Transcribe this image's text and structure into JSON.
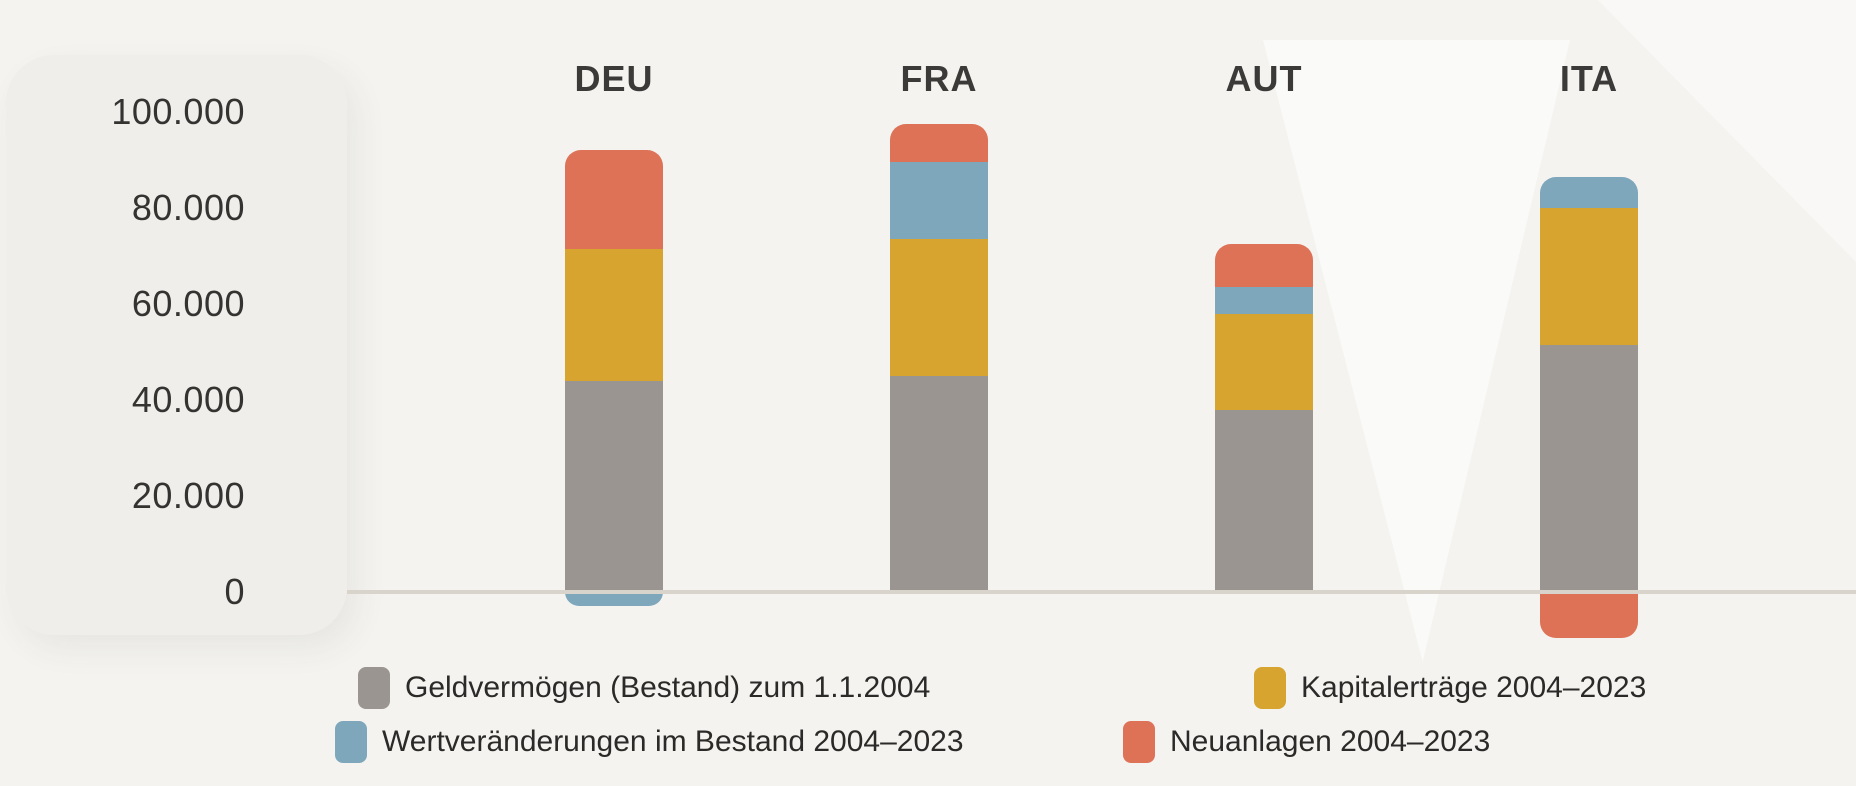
{
  "chart_data": {
    "type": "bar",
    "stacked": true,
    "title": "",
    "xlabel": "",
    "ylabel": "",
    "categories": [
      "DEU",
      "FRA",
      "AUT",
      "ITA"
    ],
    "series": [
      {
        "name": "Geldvermögen (Bestand) zum 1.1.2004",
        "color": "#9a9590",
        "values": [
          44000,
          45000,
          38000,
          51500
        ]
      },
      {
        "name": "Kapitalerträge 2004–2023",
        "color": "#d6a42f",
        "values": [
          27500,
          28500,
          20000,
          28500
        ]
      },
      {
        "name": "Wertveränderungen im Bestand 2004–2023",
        "color": "#7ea7bb",
        "values": [
          -3000,
          16000,
          5500,
          6500
        ]
      },
      {
        "name": "Neuanlagen 2004–2023",
        "color": "#de7257",
        "values": [
          20500,
          8000,
          9000,
          -9500
        ]
      }
    ],
    "ylim": [
      0,
      100000
    ],
    "yticks": [
      {
        "value": 100000,
        "label": "100.000"
      },
      {
        "value": 80000,
        "label": "80.000"
      },
      {
        "value": 60000,
        "label": "60.000"
      },
      {
        "value": 40000,
        "label": "40.000"
      },
      {
        "value": 20000,
        "label": "20.000"
      },
      {
        "value": 0,
        "label": "0"
      }
    ],
    "grid": false,
    "legend_position": "bottom"
  },
  "legend": {
    "items": [
      {
        "label": "Geldvermögen (Bestand) zum 1.1.2004",
        "color": "#9a9590"
      },
      {
        "label": "Kapitalerträge 2004–2023",
        "color": "#d6a42f"
      },
      {
        "label": "Wertveränderungen im Bestand 2004–2023",
        "color": "#7ea7bb"
      },
      {
        "label": "Neuanlagen 2004–2023",
        "color": "#de7257"
      }
    ]
  },
  "colors": {
    "background": "#f4f3f0",
    "panel": "#efeeea",
    "axis_line": "#d8d3cb",
    "tick_text": "#343331",
    "label_text": "#3b3a38"
  }
}
